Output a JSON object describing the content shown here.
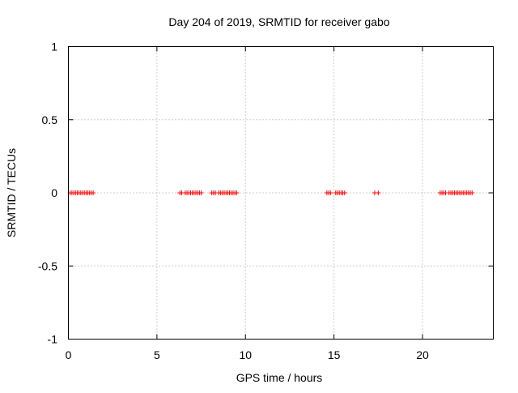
{
  "chart_data": {
    "type": "scatter",
    "title": "Day 204 of 2019, SRMTID for receiver gabo",
    "xlabel": "GPS time / hours",
    "ylabel": "SRMTID / TECUs",
    "xlim": [
      0,
      24
    ],
    "ylim": [
      -1,
      1
    ],
    "xticks": [
      0,
      5,
      10,
      15,
      20
    ],
    "yticks": [
      -1,
      -0.5,
      0,
      0.5,
      1
    ],
    "xtick_labels": [
      "0",
      "5",
      "10",
      "15",
      "20"
    ],
    "ytick_labels": [
      "-1",
      "-0.5",
      "0",
      "0.5",
      "1"
    ],
    "grid": true,
    "marker": "plus",
    "series": [
      {
        "name": "SRMTID",
        "color": "#ff0000",
        "x": [
          0.1,
          0.2,
          0.3,
          0.4,
          0.5,
          0.6,
          0.7,
          0.8,
          0.9,
          1.0,
          1.1,
          1.2,
          1.3,
          1.4,
          6.3,
          6.4,
          6.6,
          6.7,
          6.8,
          6.9,
          7.0,
          7.1,
          7.2,
          7.3,
          7.4,
          7.5,
          8.1,
          8.2,
          8.3,
          8.5,
          8.6,
          8.7,
          8.8,
          8.9,
          9.0,
          9.1,
          9.2,
          9.3,
          9.4,
          9.5,
          14.6,
          14.7,
          14.8,
          15.1,
          15.2,
          15.3,
          15.4,
          15.5,
          15.6,
          17.3,
          17.5,
          21.0,
          21.1,
          21.2,
          21.3,
          21.5,
          21.6,
          21.7,
          21.8,
          21.9,
          22.0,
          22.1,
          22.2,
          22.3,
          22.4,
          22.5,
          22.6,
          22.7,
          22.8
        ],
        "y": [
          0,
          0,
          0,
          0,
          0,
          0,
          0,
          0,
          0,
          0,
          0,
          0,
          0,
          0,
          0,
          0,
          0,
          0,
          0,
          0,
          0,
          0,
          0,
          0,
          0,
          0,
          0,
          0,
          0,
          0,
          0,
          0,
          0,
          0,
          0,
          0,
          0,
          0,
          0,
          0,
          0,
          0,
          0,
          0,
          0,
          0,
          0,
          0,
          0,
          0,
          0,
          0,
          0,
          0,
          0,
          0,
          0,
          0,
          0,
          0,
          0,
          0,
          0,
          0,
          0,
          0,
          0,
          0,
          0
        ]
      }
    ]
  },
  "colors": {
    "frame": "#000000",
    "grid": "#a0a0a0",
    "marker": "#ff0000"
  }
}
